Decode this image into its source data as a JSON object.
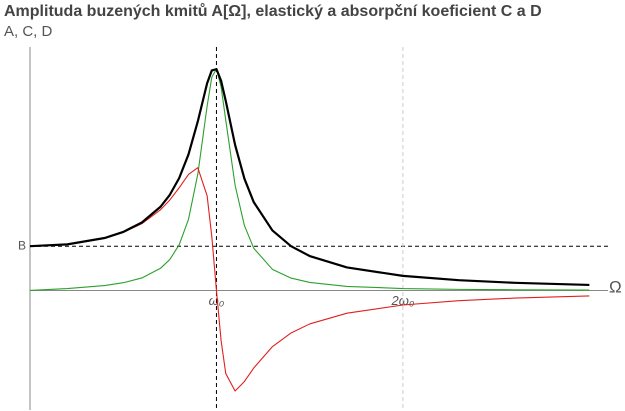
{
  "chart_data": {
    "type": "line",
    "title": "Amplituda buzených kmitů A[Ω], elastický a absorpční koeficient C a D",
    "y_label": "A, C, D",
    "x_label": "Ω",
    "x": [
      0,
      0.2,
      0.4,
      0.5,
      0.6,
      0.7,
      0.75,
      0.8,
      0.85,
      0.9,
      0.95,
      0.975,
      1,
      1.025,
      1.05,
      1.1,
      1.15,
      1.2,
      1.3,
      1.4,
      1.5,
      1.7,
      2,
      2.3,
      2.6,
      3.0
    ],
    "series": [
      {
        "color": "#000000",
        "values": [
          1,
          1.041,
          1.185,
          1.322,
          1.536,
          1.891,
          2.162,
          2.538,
          3.073,
          3.821,
          4.682,
          4.971,
          5,
          4.736,
          4.279,
          3.288,
          2.525,
          1.995,
          1.356,
          1.0,
          0.778,
          0.521,
          0.33,
          0.232,
          0.173,
          0.125
        ]
      },
      {
        "color": "#e02020",
        "values": [
          1,
          1.04,
          1.18,
          1.31,
          1.509,
          1.823,
          2.045,
          2.32,
          2.62,
          2.774,
          2.138,
          1.22,
          0,
          -1.135,
          -1.877,
          -2.27,
          -2.055,
          -1.752,
          -1.269,
          -0.96,
          -0.756,
          -0.513,
          -0.328,
          -0.23,
          -0.172,
          -0.124
        ]
      },
      {
        "color": "#2ca02c",
        "values": [
          0,
          0.043,
          0.112,
          0.175,
          0.283,
          0.501,
          0.701,
          1.031,
          1.605,
          2.628,
          4.166,
          4.819,
          5,
          4.598,
          3.845,
          2.378,
          1.466,
          0.955,
          0.478,
          0.28,
          0.182,
          0.092,
          0.044,
          0.025,
          0.016,
          0.009
        ]
      }
    ],
    "xlim": [
      0,
      3.1
    ],
    "ylim": [
      -2.7,
      5.5
    ],
    "xticks": [
      {
        "value": 1,
        "label": "ω₀"
      },
      {
        "value": 2,
        "label": "2ω₀"
      }
    ],
    "yticks": [
      {
        "value": 1,
        "label": "B"
      }
    ]
  }
}
